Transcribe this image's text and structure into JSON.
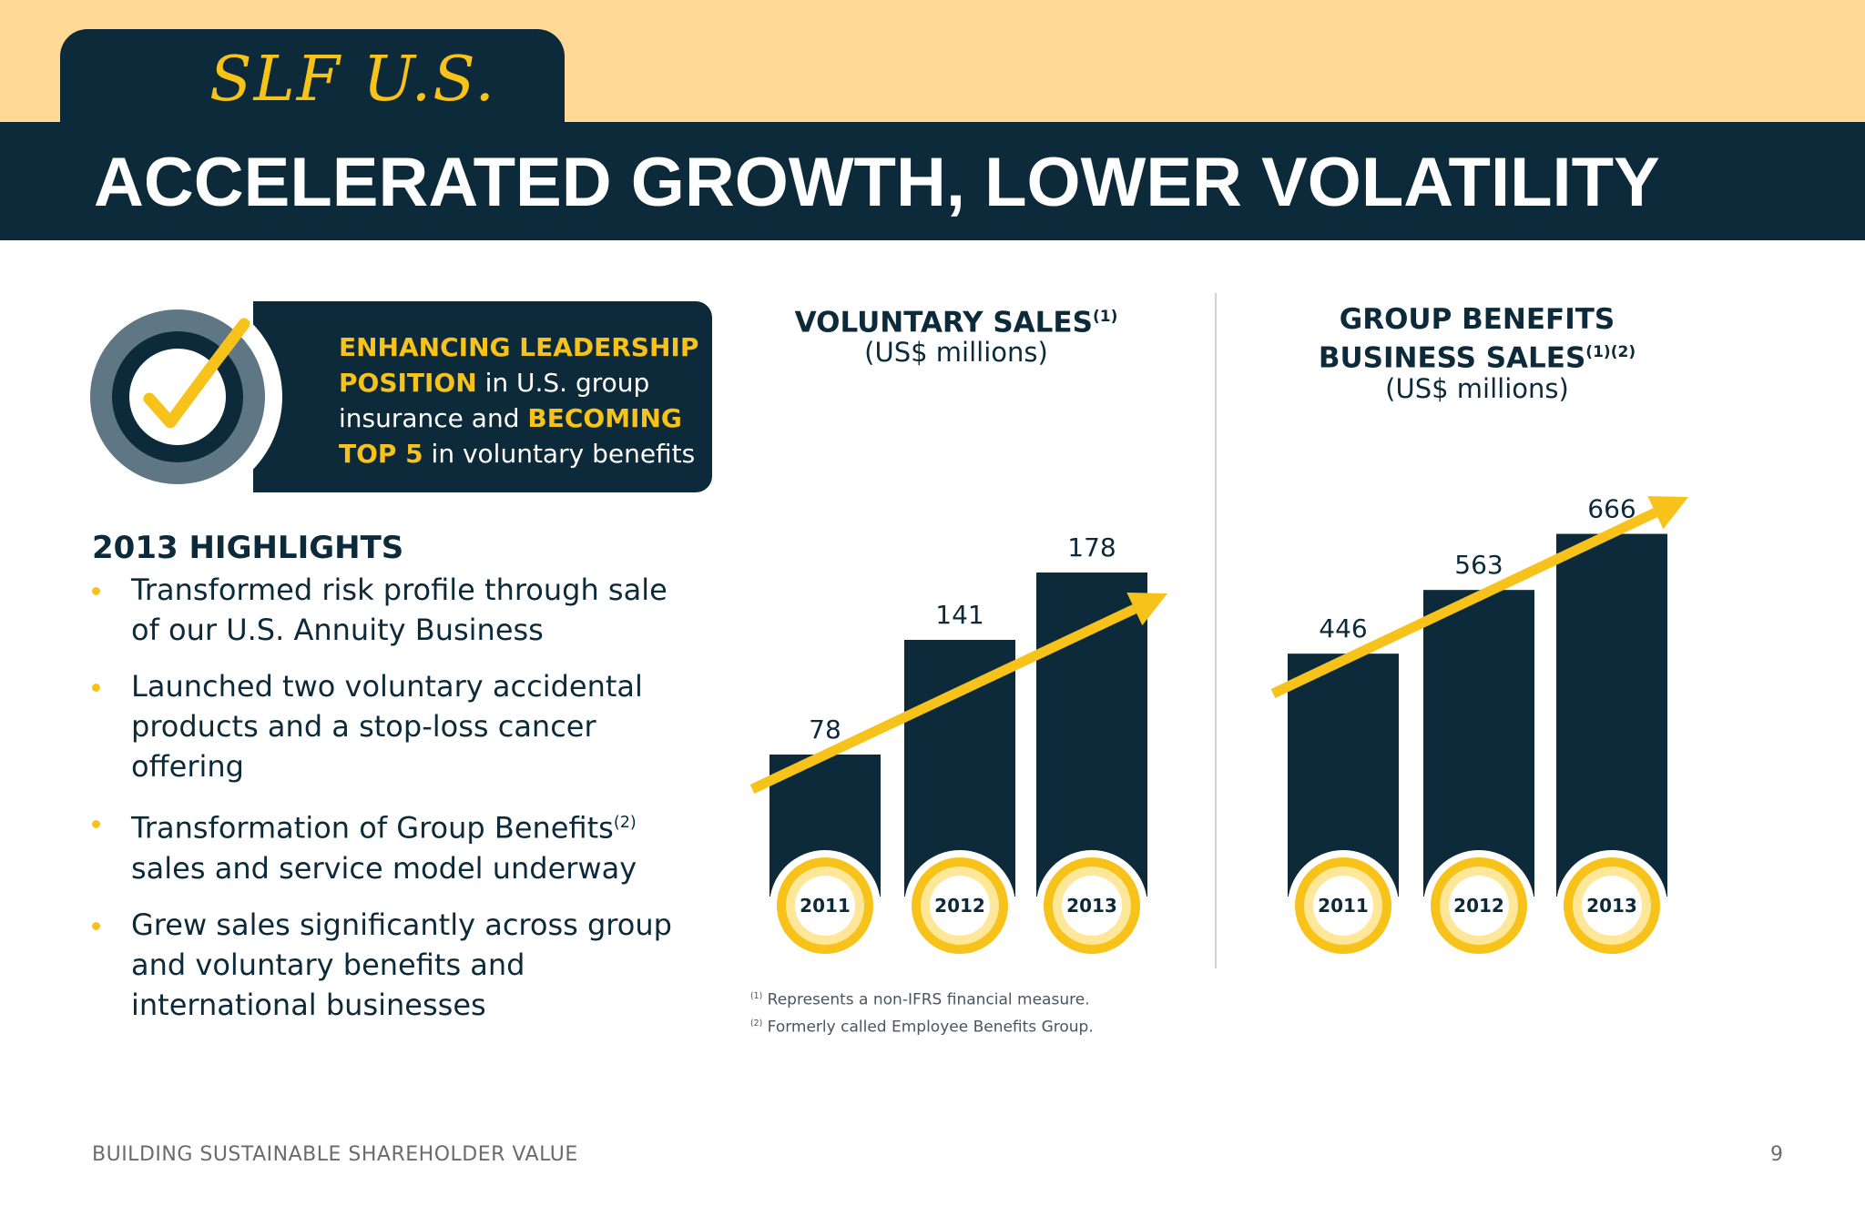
{
  "header": {
    "tab_title": "SLF U.S.",
    "title": "ACCELERATED GROWTH, LOWER VOLATILITY"
  },
  "callout": {
    "icon": "checkmark-icon",
    "parts": [
      {
        "text": "ENHANCING LEADERSHIP POSITION",
        "highlight": true
      },
      {
        "text": " in U.S. group insurance and ",
        "highlight": false
      },
      {
        "text": "BECOMING TOP 5",
        "highlight": true
      },
      {
        "text": " in voluntary benefits",
        "highlight": false
      }
    ]
  },
  "highlights": {
    "title": "2013 HIGHLIGHTS",
    "items": [
      {
        "text": "Transformed risk profile through sale of our U.S. Annuity Business",
        "sup": "",
        "tail": ""
      },
      {
        "text": "Launched two voluntary accidental products and a stop-loss cancer offering",
        "sup": "",
        "tail": ""
      },
      {
        "text": "Transformation of Group Benefits",
        "sup": "(2)",
        "tail": " sales and service model underway"
      },
      {
        "text": "Grew sales significantly across group and voluntary benefits and international businesses",
        "sup": "",
        "tail": ""
      }
    ]
  },
  "charts_text": {
    "voluntary": {
      "title": "VOLUNTARY SALES",
      "sup": "(1)",
      "sub": "(US$ millions)"
    },
    "group": {
      "title_line1": "GROUP BENEFITS",
      "title_line2": "BUSINESS SALES",
      "sup": "(1)(2)",
      "sub": "(US$ millions)"
    }
  },
  "chart_data": [
    {
      "type": "bar",
      "title": "VOLUNTARY SALES(1)",
      "ylabel": "US$ millions",
      "categories": [
        "2011",
        "2012",
        "2013"
      ],
      "values": [
        78,
        141,
        178
      ],
      "data_labels": true,
      "trend_arrow": true,
      "colors": {
        "bar": "#0c2a3a",
        "arrow": "#f7c21a",
        "year_ring": "#f7c21a",
        "year_inner": "#ffe79a"
      }
    },
    {
      "type": "bar",
      "title": "GROUP BENEFITS BUSINESS SALES(1)(2)",
      "ylabel": "US$ millions",
      "categories": [
        "2011",
        "2012",
        "2013"
      ],
      "values": [
        446,
        563,
        666
      ],
      "data_labels": true,
      "trend_arrow": true,
      "colors": {
        "bar": "#0c2a3a",
        "arrow": "#f7c21a",
        "year_ring": "#f7c21a",
        "year_inner": "#ffe79a"
      }
    }
  ],
  "footnotes": [
    {
      "sup": "(1)",
      "text": " Represents a non-IFRS financial measure."
    },
    {
      "sup": "(2)",
      "text": " Formerly called Employee Benefits Group."
    }
  ],
  "footer": {
    "left": "BUILDING SUSTAINABLE SHAREHOLDER VALUE",
    "page": "9"
  }
}
